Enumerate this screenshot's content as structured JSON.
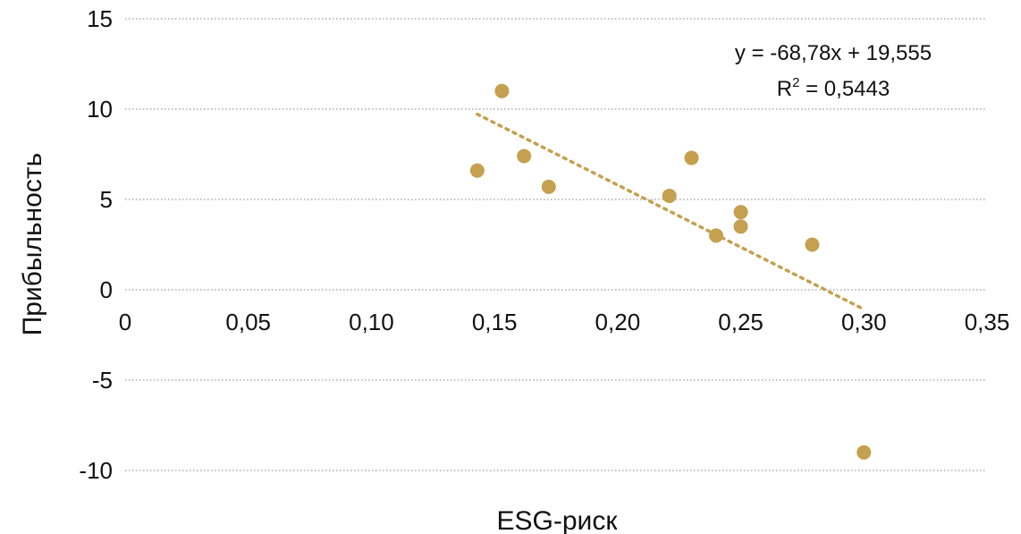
{
  "chart_data": {
    "type": "scatter",
    "title": "",
    "xlabel": "ESG-риск",
    "ylabel": "Прибыльность",
    "xlim": [
      0,
      0.35
    ],
    "ylim": [
      -10,
      15
    ],
    "x_ticks": [
      "0",
      "0,05",
      "0,10",
      "0,15",
      "0,20",
      "0,25",
      "0,30",
      "0,35"
    ],
    "y_ticks": [
      "15",
      "10",
      "5",
      "0",
      "-5",
      "-10"
    ],
    "grid": "horizontal-dotted",
    "colors": {
      "points": "#C4A04F",
      "trend": "#C4A04F",
      "grid": "#9a9a9a"
    },
    "series": [
      {
        "points": [
          {
            "x": 0.143,
            "y": 6.6
          },
          {
            "x": 0.153,
            "y": 11.0
          },
          {
            "x": 0.162,
            "y": 7.4
          },
          {
            "x": 0.172,
            "y": 5.7
          },
          {
            "x": 0.221,
            "y": 5.2
          },
          {
            "x": 0.23,
            "y": 7.3
          },
          {
            "x": 0.24,
            "y": 3.0
          },
          {
            "x": 0.25,
            "y": 4.3
          },
          {
            "x": 0.25,
            "y": 3.5
          },
          {
            "x": 0.279,
            "y": 2.5
          },
          {
            "x": 0.3,
            "y": -9.0
          }
        ]
      }
    ],
    "trendline": {
      "slope": -68.78,
      "intercept": 19.555,
      "x_range": [
        0.143,
        0.3
      ],
      "equation": "y = -68,78x + 19,555",
      "r2_prefix": "R",
      "r2_sup": "2",
      "r2_suffix": " = 0,5443"
    }
  }
}
